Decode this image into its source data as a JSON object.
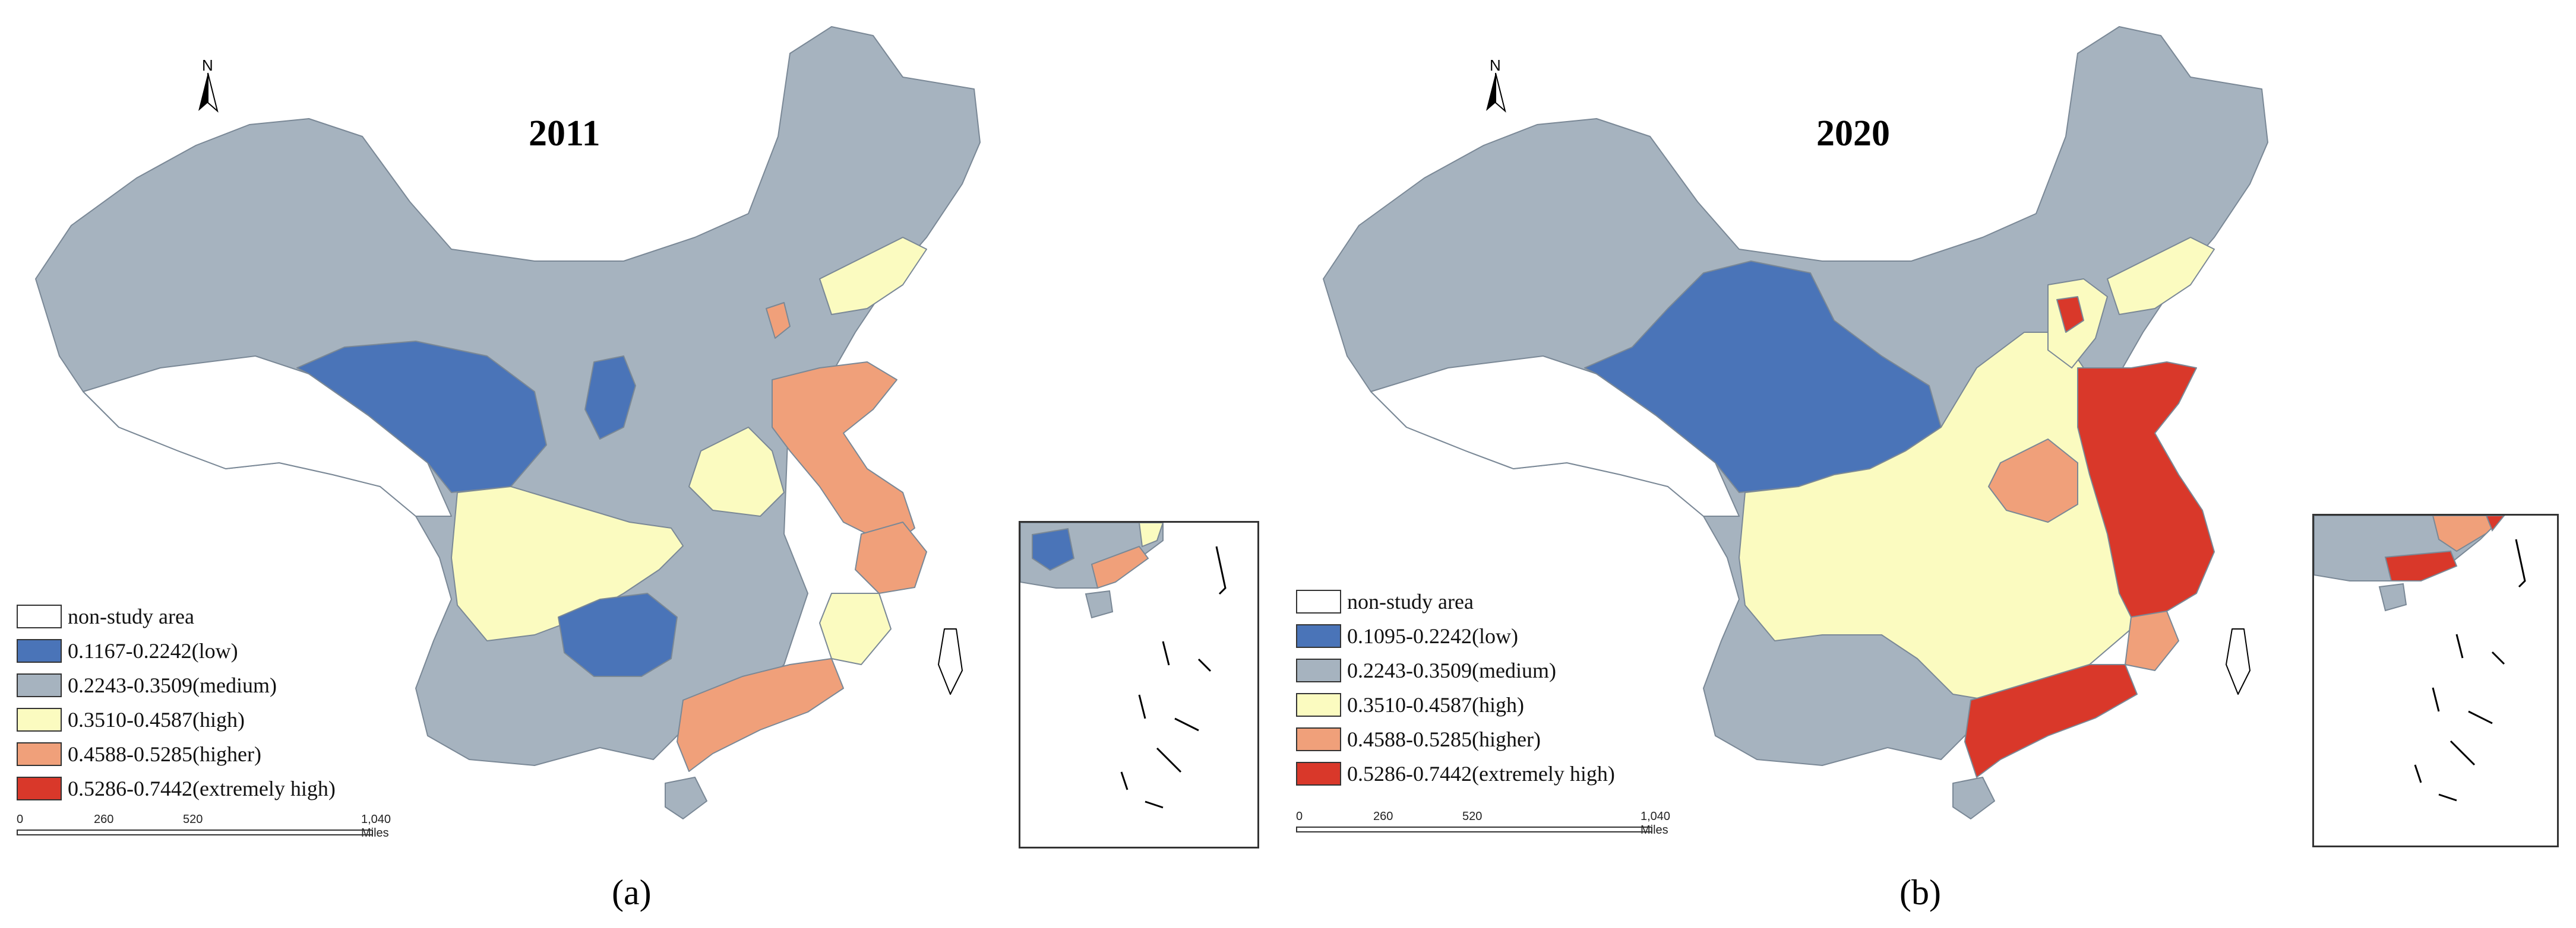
{
  "colors": {
    "low": "#4a74b8",
    "medium": "#a6b3bf",
    "high": "#fbfbc0",
    "higher": "#f0a07a",
    "extremely_high": "#d9382a",
    "non_study": "#ffffff",
    "border": "#7a8896"
  },
  "north_arrow": "N",
  "panels": [
    {
      "year": "2011",
      "caption": "(a)",
      "legend": [
        {
          "label": "non-study area",
          "class": "non_study"
        },
        {
          "label": "0.1167-0.2242(low)",
          "class": "low"
        },
        {
          "label": "0.2243-0.3509(medium)",
          "class": "medium"
        },
        {
          "label": "0.3510-0.4587(high)",
          "class": "high"
        },
        {
          "label": "0.4588-0.5285(higher)",
          "class": "higher"
        },
        {
          "label": "0.5286-0.7442(extremely high)",
          "class": "extremely_high"
        }
      ],
      "scale": {
        "ticks": [
          "0",
          "260",
          "520",
          "1,040 Miles"
        ]
      }
    },
    {
      "year": "2020",
      "caption": "(b)",
      "legend": [
        {
          "label": "non-study area",
          "class": "non_study"
        },
        {
          "label": "0.1095-0.2242(low)",
          "class": "low"
        },
        {
          "label": "0.2243-0.3509(medium)",
          "class": "medium"
        },
        {
          "label": "0.3510-0.4587(high)",
          "class": "high"
        },
        {
          "label": "0.4588-0.5285(higher)",
          "class": "higher"
        },
        {
          "label": "0.5286-0.7442(extremely high)",
          "class": "extremely_high"
        }
      ],
      "scale": {
        "ticks": [
          "0",
          "260",
          "520",
          "1,040 Miles"
        ]
      }
    }
  ]
}
